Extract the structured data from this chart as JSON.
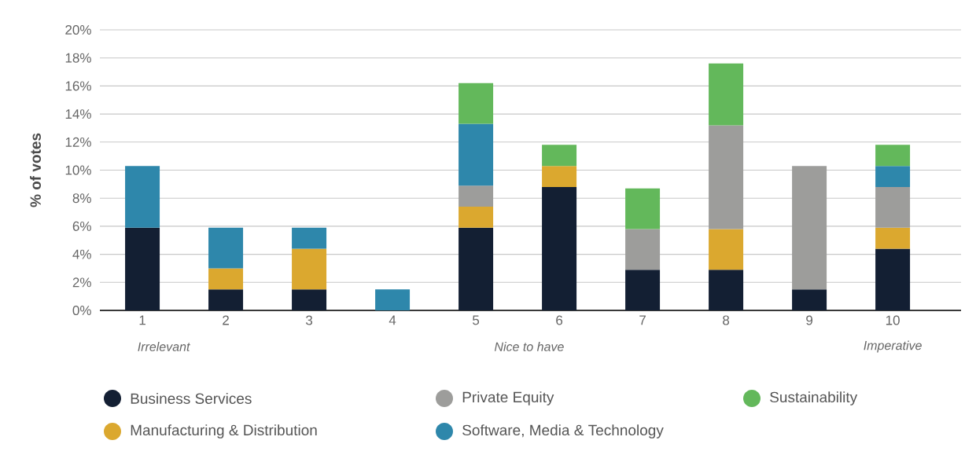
{
  "chart_data": {
    "type": "bar",
    "stacked": true,
    "ylabel": "% of votes",
    "categories": [
      "1",
      "2",
      "3",
      "4",
      "5",
      "6",
      "7",
      "8",
      "9",
      "10"
    ],
    "series": [
      {
        "name": "Business Services",
        "color": "#131f33",
        "values": [
          5.9,
          1.5,
          1.5,
          null,
          5.9,
          8.8,
          2.9,
          2.9,
          1.5,
          4.4
        ]
      },
      {
        "name": "Manufacturing & Distribution",
        "color": "#dba82f",
        "values": [
          null,
          1.5,
          2.9,
          null,
          1.5,
          1.5,
          null,
          2.9,
          null,
          1.5
        ]
      },
      {
        "name": "Private Equity",
        "color": "#9d9d9b",
        "values": [
          null,
          null,
          null,
          null,
          1.5,
          null,
          2.9,
          7.4,
          8.8,
          2.9
        ]
      },
      {
        "name": "Software, Media & Technology",
        "color": "#2e87ab",
        "values": [
          4.4,
          2.9,
          1.5,
          1.5,
          4.4,
          null,
          null,
          null,
          null,
          1.5
        ]
      },
      {
        "name": "Sustainability",
        "color": "#63b85b",
        "values": [
          null,
          null,
          null,
          null,
          2.9,
          1.5,
          2.9,
          4.4,
          null,
          1.5
        ]
      }
    ],
    "ylim": [
      0,
      20
    ],
    "yticks": [
      {
        "value": 0,
        "label": "0%"
      },
      {
        "value": 2,
        "label": "2%"
      },
      {
        "value": 4,
        "label": "4%"
      },
      {
        "value": 6,
        "label": "6%"
      },
      {
        "value": 8,
        "label": "8%"
      },
      {
        "value": 10,
        "label": "10%"
      },
      {
        "value": 12,
        "label": "12%"
      },
      {
        "value": 14,
        "label": "14%"
      },
      {
        "value": 16,
        "label": "16%"
      },
      {
        "value": 18,
        "label": "18%"
      },
      {
        "value": 20,
        "label": "20%"
      }
    ],
    "grid": "y",
    "legend": "bottom",
    "annotations": [
      "Irrelevant",
      "Nice to have",
      "Imperative"
    ]
  }
}
